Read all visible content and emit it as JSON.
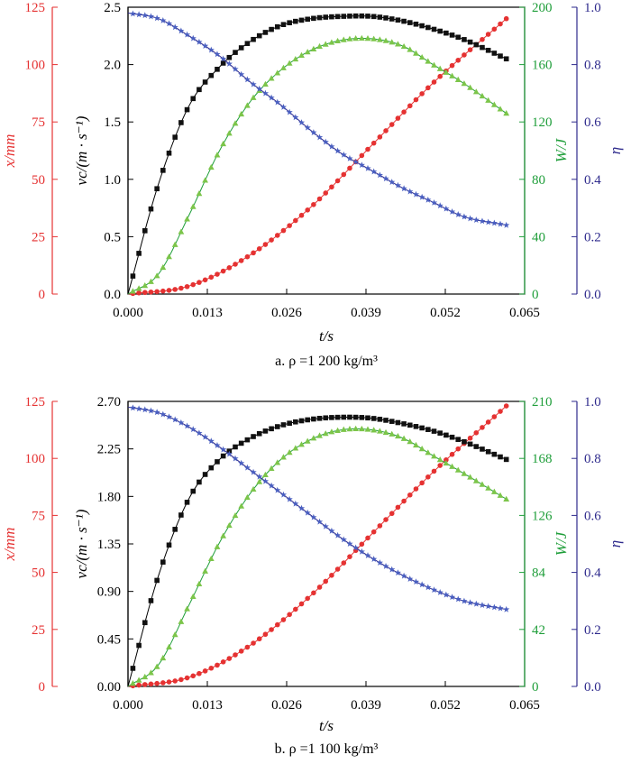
{
  "colors": {
    "x": "#e53232",
    "v": "#000000",
    "W": "#1f9e3a",
    "eta": "#2e2a8c",
    "marker_v": "#111111",
    "marker_W": "#7cc54a",
    "marker_eta": "#4a5fc0"
  },
  "chart_data": [
    {
      "type": "line",
      "caption": "a. ρ =1 200 kg/m³",
      "xlabel": "t/s",
      "xlim": [
        0,
        0.065
      ],
      "xticks": [
        "0.000",
        "0.013",
        "0.026",
        "0.039",
        "0.052",
        "0.065"
      ],
      "axes": {
        "x_mm": {
          "label": "x/mm",
          "lim": [
            0,
            125
          ],
          "ticks": [
            "0",
            "25",
            "50",
            "75",
            "100",
            "125"
          ]
        },
        "v": {
          "label": "vc/(m · s⁻¹)",
          "lim": [
            0,
            2.5
          ],
          "ticks": [
            "0.0",
            "0.5",
            "1.0",
            "1.5",
            "2.0",
            "2.5"
          ]
        },
        "W": {
          "label": "W/J",
          "lim": [
            0,
            200
          ],
          "ticks": [
            "0",
            "40",
            "80",
            "120",
            "160",
            "200"
          ]
        },
        "eta": {
          "label": "η",
          "lim": [
            0,
            1.0
          ],
          "ticks": [
            "0.0",
            "0.2",
            "0.4",
            "0.6",
            "0.8",
            "1.0"
          ]
        }
      },
      "series": [
        {
          "name": "x",
          "axis": "x_mm",
          "marker": "circle",
          "x": [
            0,
            0.01,
            0.02,
            0.03,
            0.04,
            0.05,
            0.062
          ],
          "y": [
            0,
            3.5,
            17,
            38,
            65,
            92,
            120
          ]
        },
        {
          "name": "vc",
          "axis": "v",
          "marker": "square",
          "x": [
            0,
            0.005,
            0.01,
            0.015,
            0.02,
            0.025,
            0.03,
            0.035,
            0.04,
            0.045,
            0.05,
            0.055,
            0.062
          ],
          "y": [
            0,
            0.96,
            1.64,
            1.98,
            2.2,
            2.34,
            2.4,
            2.42,
            2.42,
            2.38,
            2.31,
            2.22,
            2.05
          ]
        },
        {
          "name": "W",
          "axis": "W",
          "marker": "triangle",
          "x": [
            0,
            0.005,
            0.01,
            0.015,
            0.02,
            0.025,
            0.03,
            0.035,
            0.04,
            0.045,
            0.05,
            0.055,
            0.062
          ],
          "y": [
            0,
            14,
            55,
            100,
            134,
            156,
            170,
            177,
            178,
            173,
            160,
            147,
            126
          ]
        },
        {
          "name": "eta",
          "axis": "eta",
          "marker": "star",
          "x": [
            0,
            0.005,
            0.01,
            0.015,
            0.02,
            0.025,
            0.03,
            0.035,
            0.04,
            0.045,
            0.05,
            0.055,
            0.062
          ],
          "y": [
            0.98,
            0.96,
            0.9,
            0.83,
            0.74,
            0.66,
            0.57,
            0.49,
            0.43,
            0.37,
            0.32,
            0.27,
            0.24
          ]
        }
      ]
    },
    {
      "type": "line",
      "caption": "b. ρ =1 100 kg/m³",
      "xlabel": "t/s",
      "xlim": [
        0,
        0.065
      ],
      "xticks": [
        "0.000",
        "0.013",
        "0.026",
        "0.039",
        "0.052",
        "0.065"
      ],
      "axes": {
        "x_mm": {
          "label": "x/mm",
          "lim": [
            0,
            125
          ],
          "ticks": [
            "0",
            "25",
            "50",
            "75",
            "100",
            "125"
          ]
        },
        "v": {
          "label": "vc/(m · s⁻¹)",
          "lim": [
            0,
            2.7
          ],
          "ticks": [
            "0.00",
            "0.45",
            "0.90",
            "1.35",
            "1.80",
            "2.25",
            "2.70"
          ]
        },
        "W": {
          "label": "W/J",
          "lim": [
            0,
            210
          ],
          "ticks": [
            "0",
            "42",
            "84",
            "126",
            "168",
            "210"
          ]
        },
        "eta": {
          "label": "η",
          "lim": [
            0,
            1.0
          ],
          "ticks": [
            "0.0",
            "0.2",
            "0.4",
            "0.6",
            "0.8",
            "1.0"
          ]
        }
      },
      "series": [
        {
          "name": "x",
          "axis": "x_mm",
          "marker": "circle",
          "x": [
            0,
            0.01,
            0.02,
            0.03,
            0.04,
            0.05,
            0.062
          ],
          "y": [
            0,
            4,
            18,
            40,
            67,
            94,
            123
          ]
        },
        {
          "name": "vc",
          "axis": "v",
          "marker": "square",
          "x": [
            0,
            0.005,
            0.01,
            0.015,
            0.02,
            0.025,
            0.03,
            0.035,
            0.04,
            0.045,
            0.05,
            0.055,
            0.062
          ],
          "y": [
            0,
            1.05,
            1.78,
            2.15,
            2.35,
            2.47,
            2.53,
            2.55,
            2.54,
            2.49,
            2.42,
            2.32,
            2.15
          ]
        },
        {
          "name": "W",
          "axis": "W",
          "marker": "triangle",
          "x": [
            0,
            0.005,
            0.01,
            0.015,
            0.02,
            0.025,
            0.03,
            0.035,
            0.04,
            0.045,
            0.05,
            0.055,
            0.062
          ],
          "y": [
            0,
            16,
            60,
            106,
            142,
            167,
            182,
            189,
            189,
            183,
            170,
            157,
            138
          ]
        },
        {
          "name": "eta",
          "axis": "eta",
          "marker": "star",
          "x": [
            0,
            0.005,
            0.01,
            0.015,
            0.02,
            0.025,
            0.03,
            0.035,
            0.04,
            0.045,
            0.05,
            0.055,
            0.062
          ],
          "y": [
            0.98,
            0.96,
            0.91,
            0.84,
            0.76,
            0.68,
            0.6,
            0.52,
            0.45,
            0.39,
            0.34,
            0.3,
            0.27
          ]
        }
      ]
    }
  ]
}
